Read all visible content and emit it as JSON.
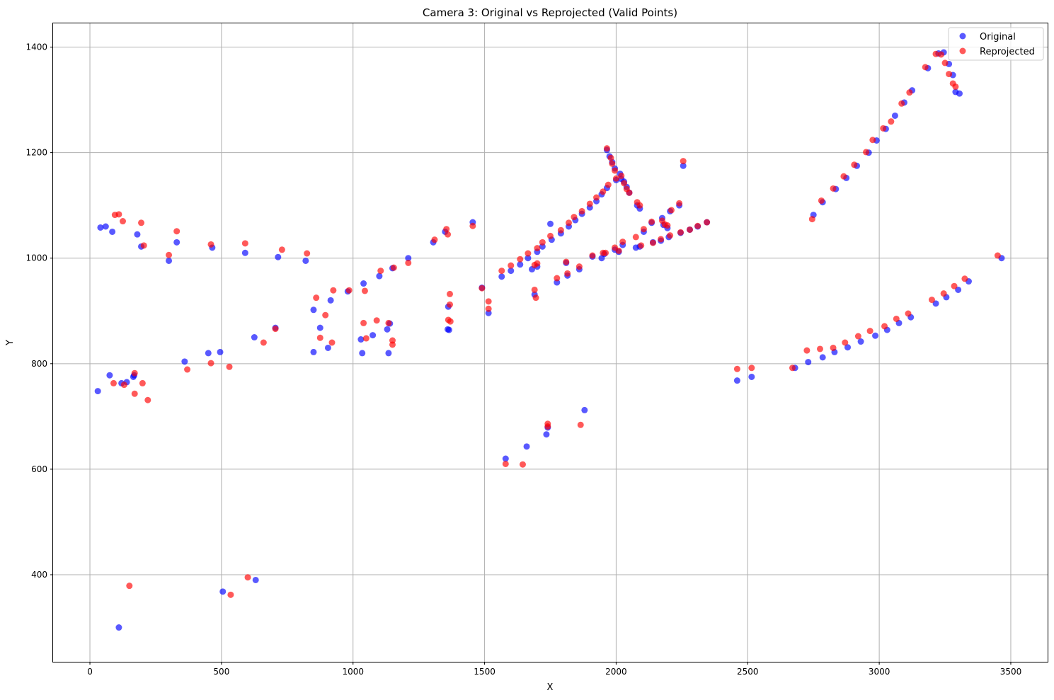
{
  "chart_data": {
    "type": "scatter",
    "title": "Camera 3: Original vs Reprojected (Valid Points)",
    "xlabel": "X",
    "ylabel": "Y",
    "xlim": [
      -140,
      3640
    ],
    "ylim": [
      235,
      1445
    ],
    "xticks": [
      0,
      500,
      1000,
      1500,
      2000,
      2500,
      3000,
      3500
    ],
    "yticks": [
      400,
      600,
      800,
      1000,
      1200,
      1400
    ],
    "grid": true,
    "legend_position": "top-right",
    "colors": {
      "original": "#0000ff",
      "reprojected": "#ff0000"
    },
    "series": [
      {
        "name": "Original",
        "color": "#0000ff",
        "points": [
          [
            40,
            1058
          ],
          [
            60,
            1060
          ],
          [
            85,
            1050
          ],
          [
            180,
            1045
          ],
          [
            195,
            1022
          ],
          [
            300,
            995
          ],
          [
            330,
            1030
          ],
          [
            465,
            1020
          ],
          [
            590,
            1010
          ],
          [
            715,
            1002
          ],
          [
            820,
            995
          ],
          [
            1210,
            1000
          ],
          [
            30,
            748
          ],
          [
            75,
            778
          ],
          [
            120,
            763
          ],
          [
            140,
            765
          ],
          [
            165,
            775
          ],
          [
            168,
            778
          ],
          [
            360,
            804
          ],
          [
            450,
            820
          ],
          [
            495,
            822
          ],
          [
            625,
            850
          ],
          [
            705,
            868
          ],
          [
            850,
            902
          ],
          [
            850,
            822
          ],
          [
            875,
            868
          ],
          [
            905,
            830
          ],
          [
            915,
            920
          ],
          [
            980,
            937
          ],
          [
            1030,
            846
          ],
          [
            1035,
            820
          ],
          [
            1040,
            952
          ],
          [
            1075,
            854
          ],
          [
            1100,
            966
          ],
          [
            1130,
            865
          ],
          [
            1135,
            820
          ],
          [
            1140,
            876
          ],
          [
            1150,
            981
          ],
          [
            1305,
            1030
          ],
          [
            110,
            300
          ],
          [
            505,
            368
          ],
          [
            630,
            390
          ],
          [
            1350,
            1050
          ],
          [
            1360,
            865
          ],
          [
            1362,
            908
          ],
          [
            1365,
            864
          ],
          [
            1455,
            1068
          ],
          [
            1490,
            944
          ],
          [
            1515,
            896
          ],
          [
            1565,
            965
          ],
          [
            1580,
            620
          ],
          [
            1600,
            976
          ],
          [
            1635,
            988
          ],
          [
            1660,
            643
          ],
          [
            1665,
            1000
          ],
          [
            1680,
            979
          ],
          [
            1690,
            931
          ],
          [
            1700,
            1012
          ],
          [
            1700,
            984
          ],
          [
            1720,
            1022
          ],
          [
            1735,
            666
          ],
          [
            1740,
            679
          ],
          [
            1750,
            1065
          ],
          [
            1755,
            1035
          ],
          [
            1775,
            954
          ],
          [
            1790,
            1047
          ],
          [
            1810,
            991
          ],
          [
            1815,
            967
          ],
          [
            1820,
            1060
          ],
          [
            1845,
            1072
          ],
          [
            1860,
            979
          ],
          [
            1870,
            1084
          ],
          [
            1880,
            712
          ],
          [
            1900,
            1096
          ],
          [
            1910,
            1003
          ],
          [
            1925,
            1108
          ],
          [
            1945,
            1000
          ],
          [
            1945,
            1121
          ],
          [
            1955,
            1008
          ],
          [
            1965,
            1133
          ],
          [
            1965,
            1205
          ],
          [
            1975,
            1193
          ],
          [
            1985,
            1182
          ],
          [
            1995,
            1170
          ],
          [
            1995,
            1016
          ],
          [
            2000,
            1148
          ],
          [
            2010,
            1012
          ],
          [
            2015,
            1160
          ],
          [
            2020,
            1150
          ],
          [
            2025,
            1025
          ],
          [
            2030,
            1145
          ],
          [
            2040,
            1135
          ],
          [
            2050,
            1124
          ],
          [
            2075,
            1020
          ],
          [
            2080,
            1100
          ],
          [
            2090,
            1094
          ],
          [
            2090,
            1022
          ],
          [
            2105,
            1050
          ],
          [
            2135,
            1067
          ],
          [
            2140,
            1030
          ],
          [
            2170,
            1033
          ],
          [
            2175,
            1076
          ],
          [
            2180,
            1063
          ],
          [
            2195,
            1057
          ],
          [
            2200,
            1040
          ],
          [
            2205,
            1089
          ],
          [
            2240,
            1100
          ],
          [
            2245,
            1048
          ],
          [
            2255,
            1175
          ],
          [
            2280,
            1054
          ],
          [
            2310,
            1060
          ],
          [
            2345,
            1068
          ],
          [
            2460,
            768
          ],
          [
            2515,
            775
          ],
          [
            2680,
            792
          ],
          [
            2730,
            803
          ],
          [
            2750,
            1082
          ],
          [
            2785,
            812
          ],
          [
            2785,
            1106
          ],
          [
            2830,
            822
          ],
          [
            2835,
            1131
          ],
          [
            2875,
            1152
          ],
          [
            2880,
            831
          ],
          [
            2915,
            1175
          ],
          [
            2930,
            842
          ],
          [
            2960,
            1200
          ],
          [
            2985,
            853
          ],
          [
            2990,
            1223
          ],
          [
            3025,
            1245
          ],
          [
            3030,
            864
          ],
          [
            3060,
            1270
          ],
          [
            3075,
            877
          ],
          [
            3095,
            1295
          ],
          [
            3120,
            888
          ],
          [
            3125,
            1318
          ],
          [
            3185,
            1360
          ],
          [
            3215,
            914
          ],
          [
            3225,
            1388
          ],
          [
            3245,
            1390
          ],
          [
            3255,
            926
          ],
          [
            3265,
            1368
          ],
          [
            3280,
            1347
          ],
          [
            3290,
            1315
          ],
          [
            3300,
            940
          ],
          [
            3305,
            1312
          ],
          [
            3340,
            956
          ],
          [
            3465,
            1000
          ]
        ]
      },
      {
        "name": "Reprojected",
        "color": "#ff0000",
        "points": [
          [
            95,
            1082
          ],
          [
            110,
            1083
          ],
          [
            125,
            1070
          ],
          [
            195,
            1067
          ],
          [
            205,
            1024
          ],
          [
            300,
            1006
          ],
          [
            330,
            1051
          ],
          [
            460,
            1026
          ],
          [
            590,
            1028
          ],
          [
            730,
            1016
          ],
          [
            825,
            1009
          ],
          [
            1210,
            991
          ],
          [
            90,
            763
          ],
          [
            130,
            760
          ],
          [
            170,
            782
          ],
          [
            170,
            743
          ],
          [
            200,
            763
          ],
          [
            220,
            731
          ],
          [
            370,
            789
          ],
          [
            460,
            801
          ],
          [
            530,
            794
          ],
          [
            660,
            840
          ],
          [
            705,
            866
          ],
          [
            860,
            925
          ],
          [
            875,
            849
          ],
          [
            895,
            892
          ],
          [
            920,
            840
          ],
          [
            925,
            939
          ],
          [
            985,
            939
          ],
          [
            1040,
            877
          ],
          [
            1045,
            938
          ],
          [
            1050,
            848
          ],
          [
            1090,
            882
          ],
          [
            1105,
            976
          ],
          [
            1135,
            877
          ],
          [
            1150,
            844
          ],
          [
            1150,
            836
          ],
          [
            1155,
            982
          ],
          [
            1310,
            1035
          ],
          [
            150,
            379
          ],
          [
            535,
            362
          ],
          [
            600,
            395
          ],
          [
            1355,
            1055
          ],
          [
            1360,
            1045
          ],
          [
            1362,
            883
          ],
          [
            1368,
            932
          ],
          [
            1368,
            912
          ],
          [
            1370,
            880
          ],
          [
            1455,
            1061
          ],
          [
            1490,
            943
          ],
          [
            1515,
            918
          ],
          [
            1515,
            904
          ],
          [
            1565,
            976
          ],
          [
            1580,
            610
          ],
          [
            1600,
            986
          ],
          [
            1635,
            998
          ],
          [
            1645,
            609
          ],
          [
            1665,
            1009
          ],
          [
            1690,
            940
          ],
          [
            1690,
            987
          ],
          [
            1695,
            925
          ],
          [
            1700,
            1019
          ],
          [
            1700,
            990
          ],
          [
            1720,
            1030
          ],
          [
            1740,
            686
          ],
          [
            1740,
            681
          ],
          [
            1750,
            1042
          ],
          [
            1775,
            962
          ],
          [
            1790,
            1053
          ],
          [
            1810,
            993
          ],
          [
            1815,
            971
          ],
          [
            1820,
            1067
          ],
          [
            1840,
            1078
          ],
          [
            1860,
            984
          ],
          [
            1865,
            684
          ],
          [
            1870,
            1089
          ],
          [
            1900,
            1103
          ],
          [
            1910,
            1005
          ],
          [
            1925,
            1115
          ],
          [
            1950,
            1010
          ],
          [
            1950,
            1126
          ],
          [
            1960,
            1010
          ],
          [
            1970,
            1139
          ],
          [
            1965,
            1208
          ],
          [
            1980,
            1190
          ],
          [
            1985,
            1179
          ],
          [
            1995,
            1020
          ],
          [
            1995,
            1166
          ],
          [
            2000,
            1151
          ],
          [
            2010,
            1014
          ],
          [
            2020,
            1156
          ],
          [
            2025,
            1031
          ],
          [
            2030,
            1142
          ],
          [
            2040,
            1131
          ],
          [
            2050,
            1124
          ],
          [
            2075,
            1040
          ],
          [
            2080,
            1106
          ],
          [
            2090,
            1100
          ],
          [
            2095,
            1024
          ],
          [
            2105,
            1055
          ],
          [
            2135,
            1069
          ],
          [
            2140,
            1029
          ],
          [
            2170,
            1036
          ],
          [
            2175,
            1071
          ],
          [
            2185,
            1064
          ],
          [
            2195,
            1062
          ],
          [
            2205,
            1043
          ],
          [
            2210,
            1091
          ],
          [
            2240,
            1104
          ],
          [
            2245,
            1049
          ],
          [
            2255,
            1184
          ],
          [
            2280,
            1054
          ],
          [
            2310,
            1061
          ],
          [
            2345,
            1068
          ],
          [
            2460,
            790
          ],
          [
            2515,
            792
          ],
          [
            2670,
            792
          ],
          [
            2725,
            825
          ],
          [
            2745,
            1074
          ],
          [
            2775,
            828
          ],
          [
            2780,
            1109
          ],
          [
            2825,
            830
          ],
          [
            2825,
            1132
          ],
          [
            2865,
            1155
          ],
          [
            2870,
            840
          ],
          [
            2905,
            1177
          ],
          [
            2920,
            852
          ],
          [
            2950,
            1201
          ],
          [
            2965,
            862
          ],
          [
            2975,
            1224
          ],
          [
            3015,
            1246
          ],
          [
            3020,
            871
          ],
          [
            3045,
            1259
          ],
          [
            3065,
            885
          ],
          [
            3085,
            1293
          ],
          [
            3110,
            895
          ],
          [
            3115,
            1314
          ],
          [
            3175,
            1362
          ],
          [
            3200,
            921
          ],
          [
            3215,
            1387
          ],
          [
            3235,
            1386
          ],
          [
            3245,
            933
          ],
          [
            3250,
            1370
          ],
          [
            3265,
            1349
          ],
          [
            3280,
            1331
          ],
          [
            3285,
            947
          ],
          [
            3290,
            1325
          ],
          [
            3325,
            961
          ],
          [
            3450,
            1005
          ]
        ]
      }
    ]
  }
}
